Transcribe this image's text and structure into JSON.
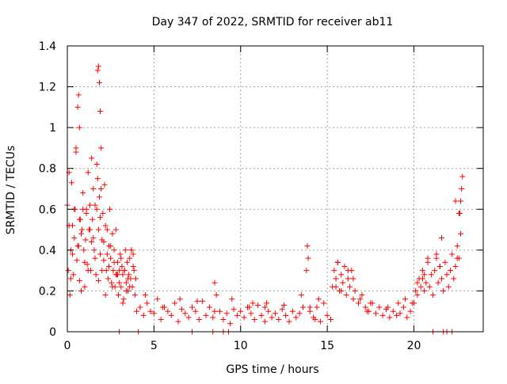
{
  "colors": {
    "marker": "#ff0000",
    "grid": "#a0a0a0",
    "axis": "#000000",
    "background": "#ffffff"
  },
  "chart_data": {
    "type": "scatter",
    "title": "Day 347 of 2022, SRMTID for receiver ab11",
    "xlabel": "GPS time / hours",
    "ylabel": "SRMTID / TECUs",
    "xlim": [
      0,
      24
    ],
    "ylim": [
      0,
      1.4
    ],
    "xticks": [
      0,
      5,
      10,
      15,
      20
    ],
    "xtick_labels": [
      "0",
      "5",
      "10",
      "15",
      "20"
    ],
    "yticks": [
      0,
      0.2,
      0.4,
      0.6,
      0.8,
      1.0,
      1.2,
      1.4
    ],
    "ytick_labels": [
      "0",
      "0.2",
      "0.4",
      "0.6",
      "0.8",
      "1",
      "1.2",
      "1.4"
    ],
    "grid": true,
    "marker": "+",
    "series": [
      {
        "name": "SRMTID",
        "x": [
          0.0,
          0.05,
          0.1,
          0.15,
          0.2,
          0.25,
          0.3,
          0.35,
          0.4,
          0.45,
          0.5,
          0.55,
          0.6,
          0.65,
          0.7,
          0.75,
          0.8,
          0.85,
          0.9,
          0.95,
          1.0,
          1.05,
          1.1,
          1.15,
          1.2,
          1.25,
          1.3,
          1.35,
          1.4,
          1.45,
          1.5,
          1.55,
          1.6,
          1.65,
          1.7,
          1.75,
          1.8,
          1.85,
          1.9,
          1.95,
          2.0,
          2.05,
          2.1,
          2.15,
          2.2,
          2.25,
          2.3,
          2.35,
          2.4,
          2.45,
          2.5,
          2.55,
          2.6,
          2.65,
          2.7,
          2.75,
          2.8,
          2.85,
          2.9,
          2.95,
          3.0,
          3.05,
          3.1,
          3.15,
          3.2,
          3.25,
          3.3,
          3.35,
          3.4,
          3.45,
          3.5,
          3.55,
          3.6,
          3.65,
          3.7,
          3.75,
          3.8,
          3.85,
          3.9,
          3.95,
          4.0,
          4.2,
          4.4,
          4.6,
          4.8,
          5.0,
          5.2,
          5.4,
          5.6,
          5.8,
          6.0,
          6.2,
          6.4,
          6.6,
          6.8,
          7.0,
          7.2,
          7.4,
          7.6,
          7.8,
          8.0,
          8.2,
          8.4,
          8.6,
          8.8,
          9.0,
          9.2,
          9.4,
          9.6,
          9.8,
          10.0,
          10.2,
          10.4,
          10.6,
          10.8,
          11.0,
          11.2,
          11.4,
          11.6,
          11.8,
          12.0,
          12.2,
          12.4,
          12.6,
          12.8,
          13.0,
          13.2,
          13.4,
          13.6,
          13.8,
          13.85,
          13.9,
          14.0,
          14.2,
          14.4,
          14.6,
          14.8,
          15.0,
          15.2,
          15.3,
          15.4,
          15.5,
          15.6,
          15.7,
          15.8,
          15.9,
          16.0,
          16.1,
          16.2,
          16.3,
          16.4,
          16.5,
          16.6,
          16.8,
          17.0,
          17.2,
          17.4,
          17.6,
          17.8,
          18.0,
          18.2,
          18.4,
          18.6,
          18.8,
          19.0,
          19.2,
          19.4,
          19.6,
          19.8,
          20.0,
          20.1,
          20.2,
          20.3,
          20.4,
          20.5,
          20.6,
          20.7,
          20.8,
          20.9,
          21.0,
          21.1,
          21.2,
          21.3,
          21.4,
          21.5,
          21.6,
          21.7,
          21.8,
          21.9,
          22.0,
          22.1,
          22.2,
          22.3,
          22.4,
          22.5,
          22.6,
          22.65,
          22.7,
          22.75,
          22.8,
          3.0,
          4.1,
          7.2,
          8.4,
          9.0,
          9.3,
          21.1,
          21.7,
          21.9,
          22.2,
          0.1,
          0.3,
          0.5,
          0.7,
          0.9,
          1.1,
          1.3,
          1.5,
          1.7,
          1.9,
          2.1,
          2.3,
          2.5,
          2.7,
          2.9,
          3.1,
          3.3,
          3.5,
          3.7,
          1.8,
          1.85,
          1.75,
          0.65,
          0.7,
          1.9,
          1.95,
          0.2,
          0.4,
          0.6,
          0.8,
          1.0,
          1.2,
          1.4,
          1.6,
          1.8,
          2.0,
          2.2,
          2.4,
          2.6,
          2.8,
          3.0,
          3.2,
          3.4,
          3.6,
          3.8,
          4.5,
          5.5,
          6.5,
          7.5,
          8.5,
          9.5,
          10.5,
          11.5,
          12.5,
          13.5,
          14.5,
          15.5,
          16.5,
          17.5,
          18.5,
          19.5,
          20.5,
          21.5,
          22.5,
          15.6,
          15.8,
          16.2,
          20.6,
          20.8,
          21.3,
          21.6,
          22.4,
          22.6,
          22.7,
          8.5,
          10.7,
          11.4,
          14.0,
          14.3,
          16.9,
          17.3,
          19.1,
          19.9,
          20.2
        ],
        "y": [
          0.62,
          0.3,
          0.52,
          0.18,
          0.4,
          0.73,
          0.38,
          0.28,
          0.46,
          0.6,
          0.9,
          0.35,
          1.1,
          0.42,
          0.25,
          0.55,
          0.48,
          0.5,
          0.68,
          0.4,
          0.22,
          0.45,
          0.6,
          0.33,
          0.78,
          0.5,
          0.62,
          0.3,
          0.85,
          0.55,
          0.7,
          0.4,
          0.62,
          0.28,
          0.82,
          0.75,
          0.5,
          0.66,
          0.38,
          0.7,
          0.45,
          0.58,
          0.35,
          0.72,
          0.52,
          0.3,
          0.5,
          0.26,
          0.42,
          0.6,
          0.36,
          0.24,
          0.48,
          0.3,
          0.4,
          0.22,
          0.5,
          0.28,
          0.34,
          0.18,
          0.3,
          0.38,
          0.22,
          0.32,
          0.28,
          0.16,
          0.3,
          0.4,
          0.24,
          0.34,
          0.2,
          0.28,
          0.36,
          0.26,
          0.4,
          0.22,
          0.32,
          0.3,
          0.18,
          0.26,
          0.1,
          0.12,
          0.08,
          0.14,
          0.1,
          0.09,
          0.16,
          0.06,
          0.12,
          0.1,
          0.08,
          0.14,
          0.05,
          0.11,
          0.09,
          0.07,
          0.12,
          0.1,
          0.06,
          0.15,
          0.08,
          0.12,
          0.07,
          0.18,
          0.1,
          0.06,
          0.09,
          0.04,
          0.11,
          0.08,
          0.1,
          0.07,
          0.12,
          0.09,
          0.06,
          0.13,
          0.08,
          0.05,
          0.1,
          0.07,
          0.09,
          0.06,
          0.11,
          0.08,
          0.05,
          0.1,
          0.07,
          0.09,
          0.12,
          0.3,
          0.42,
          0.36,
          0.1,
          0.07,
          0.12,
          0.05,
          0.14,
          0.08,
          0.06,
          0.22,
          0.3,
          0.26,
          0.34,
          0.2,
          0.28,
          0.24,
          0.32,
          0.18,
          0.26,
          0.22,
          0.3,
          0.16,
          0.2,
          0.14,
          0.18,
          0.12,
          0.1,
          0.14,
          0.09,
          0.12,
          0.08,
          0.11,
          0.07,
          0.1,
          0.08,
          0.09,
          0.12,
          0.07,
          0.1,
          0.14,
          0.2,
          0.18,
          0.26,
          0.22,
          0.3,
          0.2,
          0.24,
          0.34,
          0.22,
          0.28,
          0.18,
          0.3,
          0.36,
          0.24,
          0.32,
          0.26,
          0.2,
          0.34,
          0.28,
          0.22,
          0.3,
          0.38,
          0.26,
          0.32,
          0.42,
          0.36,
          0.58,
          0.48,
          0.7,
          0.76,
          0.0,
          0.0,
          0.0,
          0.0,
          0.0,
          0.0,
          0.0,
          0.0,
          0.0,
          0.0,
          0.78,
          0.52,
          0.88,
          0.55,
          0.6,
          0.58,
          0.5,
          0.46,
          0.6,
          0.56,
          0.44,
          0.38,
          0.42,
          0.34,
          0.28,
          0.36,
          0.3,
          0.26,
          0.4,
          1.3,
          1.22,
          1.28,
          1.16,
          1.0,
          1.08,
          0.9,
          0.26,
          0.6,
          0.42,
          0.2,
          0.34,
          0.3,
          0.44,
          0.36,
          0.25,
          0.3,
          0.18,
          0.32,
          0.22,
          0.28,
          0.24,
          0.14,
          0.2,
          0.22,
          0.38,
          0.18,
          0.12,
          0.16,
          0.15,
          0.24,
          0.16,
          0.12,
          0.14,
          0.13,
          0.18,
          0.16,
          0.22,
          0.26,
          0.14,
          0.12,
          0.16,
          0.26,
          0.32,
          0.36,
          0.34,
          0.2,
          0.3,
          0.28,
          0.36,
          0.38,
          0.46,
          0.64,
          0.58,
          0.64,
          0.1,
          0.14,
          0.12,
          0.12,
          0.06,
          0.16,
          0.1,
          0.14,
          0.14,
          0.24
        ]
      }
    ]
  }
}
